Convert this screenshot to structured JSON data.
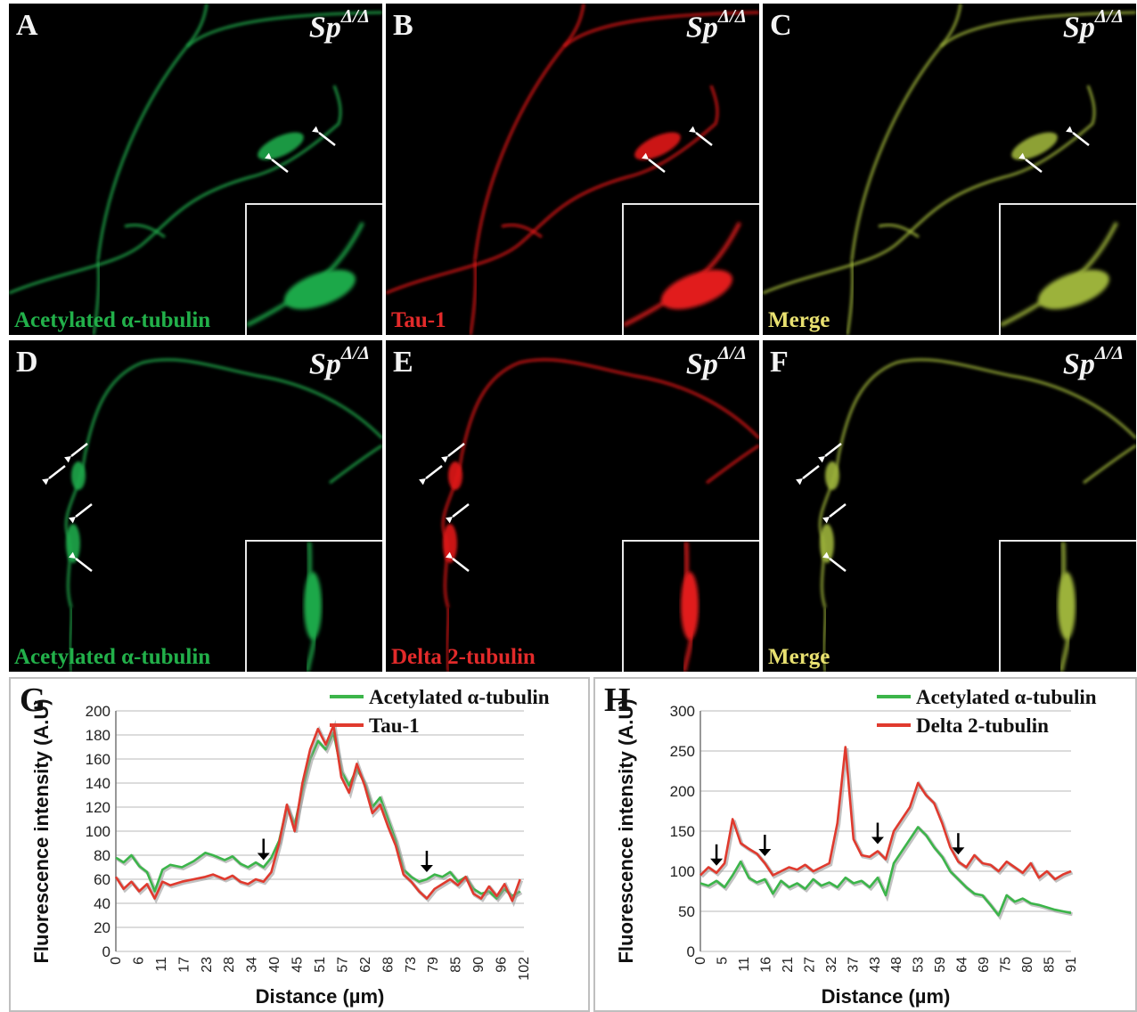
{
  "panels": [
    {
      "letter": "A",
      "genotype": "Sp",
      "genotype_sup": "Δ/Δ",
      "caption": "Acetylated α-tubulin",
      "caption_color": "#22b04a",
      "stain": "#1fa84a",
      "row": 1
    },
    {
      "letter": "B",
      "genotype": "Sp",
      "genotype_sup": "Δ/Δ",
      "caption": "Tau-1",
      "caption_color": "#e22a2a",
      "stain": "#e11b1b",
      "row": 1
    },
    {
      "letter": "C",
      "genotype": "Sp",
      "genotype_sup": "Δ/Δ",
      "caption": "Merge",
      "caption_color": "#e8e070",
      "stain": "#9cb23a",
      "row": 1
    },
    {
      "letter": "D",
      "genotype": "Sp",
      "genotype_sup": "Δ/Δ",
      "caption": "Acetylated α-tubulin",
      "caption_color": "#22b04a",
      "stain": "#1fa84a",
      "row": 2
    },
    {
      "letter": "E",
      "genotype": "Sp",
      "genotype_sup": "Δ/Δ",
      "caption": "Delta 2-tubulin",
      "caption_color": "#e22a2a",
      "stain": "#e11b1b",
      "row": 2
    },
    {
      "letter": "F",
      "genotype": "Sp",
      "genotype_sup": "Δ/Δ",
      "caption": "Merge",
      "caption_color": "#e8e070",
      "stain": "#9cb23a",
      "row": 2
    }
  ],
  "chart_data": [
    {
      "letter": "G",
      "type": "line",
      "xlabel": "Distance (µm)",
      "ylabel": "Fluorescence intensity (A.U)",
      "ylim": [
        0,
        200
      ],
      "yticks": [
        0,
        20,
        40,
        60,
        80,
        100,
        120,
        140,
        160,
        180,
        200
      ],
      "xtick_labels": [
        "0",
        "6",
        "11",
        "17",
        "23",
        "28",
        "34",
        "40",
        "45",
        "51",
        "57",
        "62",
        "68",
        "73",
        "79",
        "85",
        "90",
        "96",
        "102"
      ],
      "xlim": [
        0,
        105
      ],
      "grid": true,
      "legend_position": "top-right",
      "arrows_x": [
        38,
        80
      ],
      "series": [
        {
          "name": "Acetylated α-tubulin",
          "color": "#3cb54a",
          "x": [
            0,
            2,
            4,
            6,
            8,
            10,
            12,
            14,
            17,
            20,
            23,
            25,
            28,
            30,
            32,
            34,
            36,
            38,
            40,
            42,
            44,
            46,
            48,
            50,
            52,
            54,
            56,
            58,
            60,
            62,
            64,
            66,
            68,
            70,
            72,
            74,
            76,
            78,
            80,
            82,
            84,
            86,
            88,
            90,
            92,
            94,
            96,
            98,
            100,
            102,
            104
          ],
          "y": [
            78,
            74,
            80,
            71,
            66,
            50,
            68,
            72,
            70,
            75,
            82,
            80,
            76,
            79,
            73,
            70,
            74,
            70,
            78,
            92,
            120,
            105,
            135,
            160,
            175,
            168,
            182,
            150,
            138,
            152,
            140,
            120,
            128,
            110,
            92,
            68,
            62,
            58,
            60,
            64,
            62,
            66,
            58,
            62,
            52,
            48,
            50,
            44,
            52,
            46,
            50
          ]
        },
        {
          "name": "Tau-1",
          "color": "#e03a2e",
          "x": [
            0,
            2,
            4,
            6,
            8,
            10,
            12,
            14,
            17,
            20,
            23,
            25,
            28,
            30,
            32,
            34,
            36,
            38,
            40,
            42,
            44,
            46,
            48,
            50,
            52,
            54,
            56,
            58,
            60,
            62,
            64,
            66,
            68,
            70,
            72,
            74,
            76,
            78,
            80,
            82,
            84,
            86,
            88,
            90,
            92,
            94,
            96,
            98,
            100,
            102,
            104
          ],
          "y": [
            62,
            52,
            58,
            50,
            56,
            44,
            58,
            55,
            58,
            60,
            62,
            64,
            60,
            63,
            58,
            56,
            60,
            58,
            66,
            90,
            122,
            100,
            140,
            168,
            185,
            172,
            188,
            145,
            132,
            156,
            138,
            115,
            122,
            104,
            88,
            64,
            58,
            50,
            44,
            52,
            56,
            60,
            55,
            62,
            48,
            44,
            54,
            46,
            56,
            42,
            60
          ]
        }
      ]
    },
    {
      "letter": "H",
      "type": "line",
      "xlabel": "Distance (µm)",
      "ylabel": "Fluorescence intensity (A.U)",
      "ylim": [
        0,
        300
      ],
      "yticks": [
        0,
        50,
        100,
        150,
        200,
        250,
        300
      ],
      "xtick_labels": [
        "0",
        "5",
        "11",
        "16",
        "21",
        "27",
        "32",
        "37",
        "43",
        "48",
        "53",
        "59",
        "64",
        "69",
        "75",
        "80",
        "85",
        "91"
      ],
      "xlim": [
        0,
        92
      ],
      "grid": true,
      "legend_position": "top-right",
      "arrows_x": [
        4,
        16,
        44,
        64
      ],
      "series": [
        {
          "name": "Acetylated α-tubulin",
          "color": "#3cb54a",
          "x": [
            0,
            2,
            4,
            6,
            8,
            10,
            12,
            14,
            16,
            18,
            20,
            22,
            24,
            26,
            28,
            30,
            32,
            34,
            36,
            38,
            40,
            42,
            44,
            46,
            48,
            50,
            52,
            54,
            56,
            58,
            60,
            62,
            64,
            66,
            68,
            70,
            72,
            74,
            76,
            78,
            80,
            82,
            84,
            86,
            88,
            90,
            92
          ],
          "y": [
            85,
            82,
            88,
            80,
            95,
            112,
            92,
            86,
            90,
            72,
            88,
            80,
            85,
            78,
            90,
            82,
            86,
            80,
            92,
            85,
            88,
            80,
            92,
            70,
            110,
            125,
            140,
            155,
            145,
            130,
            118,
            100,
            90,
            80,
            72,
            70,
            58,
            45,
            70,
            62,
            66,
            60,
            58,
            55,
            52,
            50,
            48
          ]
        },
        {
          "name": "Delta 2-tubulin",
          "color": "#e03a2e",
          "x": [
            0,
            2,
            4,
            6,
            8,
            10,
            12,
            14,
            16,
            18,
            20,
            22,
            24,
            26,
            28,
            30,
            32,
            34,
            36,
            38,
            40,
            42,
            44,
            46,
            48,
            50,
            52,
            54,
            56,
            58,
            60,
            62,
            64,
            66,
            68,
            70,
            72,
            74,
            76,
            78,
            80,
            82,
            84,
            86,
            88,
            90,
            92
          ],
          "y": [
            95,
            105,
            98,
            110,
            165,
            135,
            128,
            122,
            110,
            95,
            100,
            105,
            102,
            108,
            100,
            105,
            110,
            160,
            255,
            140,
            120,
            118,
            125,
            115,
            150,
            165,
            180,
            210,
            195,
            185,
            160,
            130,
            112,
            105,
            120,
            110,
            108,
            100,
            112,
            105,
            98,
            110,
            92,
            100,
            90,
            96,
            100
          ]
        }
      ]
    }
  ]
}
